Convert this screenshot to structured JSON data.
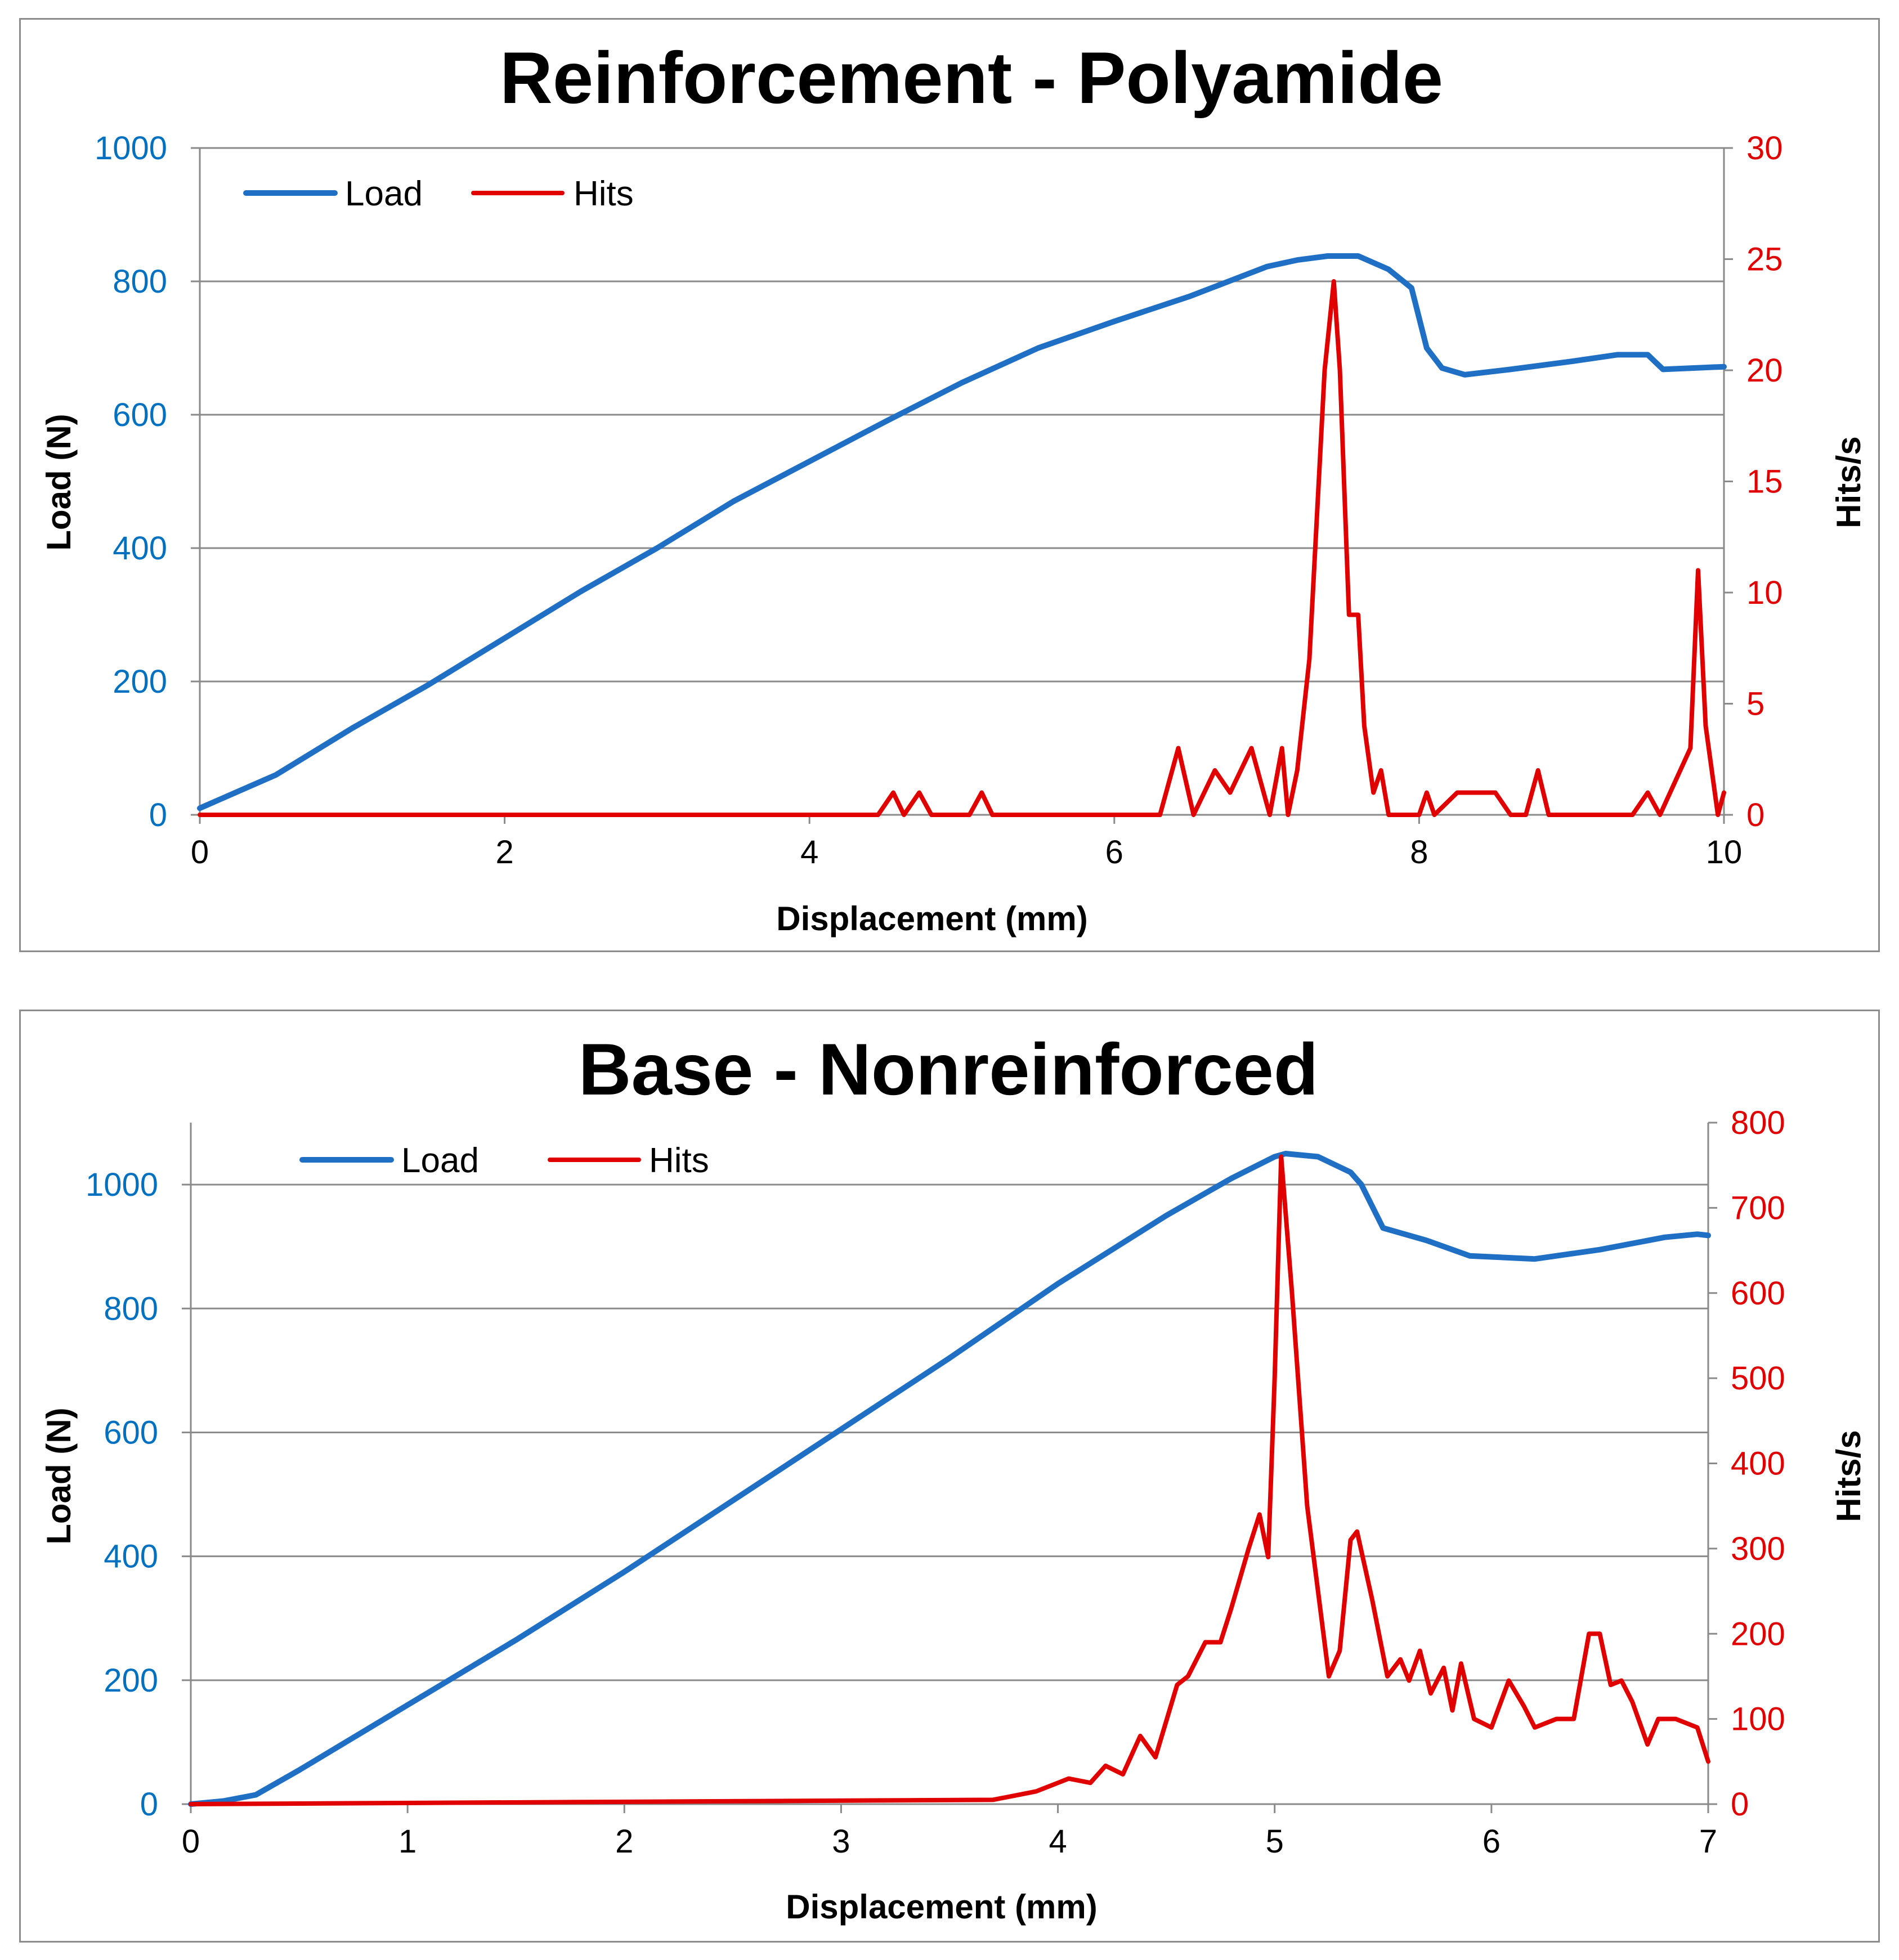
{
  "chart_data": [
    {
      "type": "line",
      "title": "Reinforcement - Polyamide",
      "xlabel": "Displacement (mm)",
      "ylabel": "Load (N)",
      "y2label": "Hits/s",
      "xlim": [
        0,
        10
      ],
      "ylim": [
        0,
        1000
      ],
      "y2lim": [
        0,
        30
      ],
      "xticks": [
        "0",
        "2",
        "4",
        "6",
        "8",
        "10"
      ],
      "yticks": [
        "0",
        "200",
        "400",
        "600",
        "800",
        "1000"
      ],
      "y2ticks": [
        "0",
        "5",
        "10",
        "15",
        "20",
        "25",
        "30"
      ],
      "grid": true,
      "legend_position": "top-left",
      "series": [
        {
          "name": "Load",
          "axis": "left",
          "color": "#1f6fc5",
          "x": [
            0,
            0.5,
            1,
            1.5,
            2,
            2.5,
            3,
            3.5,
            4,
            4.5,
            5,
            5.5,
            6,
            6.5,
            7,
            7.2,
            7.4,
            7.6,
            7.8,
            7.95,
            8.05,
            8.15,
            8.3,
            8.6,
            9,
            9.3,
            9.5,
            9.6,
            10
          ],
          "values": [
            10,
            60,
            130,
            195,
            265,
            335,
            400,
            470,
            530,
            590,
            648,
            700,
            740,
            778,
            822,
            832,
            838,
            838,
            818,
            790,
            700,
            670,
            660,
            668,
            680,
            690,
            690,
            668,
            672
          ]
        },
        {
          "name": "Hits",
          "axis": "right",
          "color": "#e00000",
          "x": [
            0,
            4.45,
            4.55,
            4.62,
            4.72,
            4.8,
            5.05,
            5.13,
            5.2,
            6.3,
            6.42,
            6.52,
            6.66,
            6.76,
            6.9,
            7.02,
            7.1,
            7.14,
            7.2,
            7.28,
            7.38,
            7.44,
            7.48,
            7.54,
            7.6,
            7.64,
            7.7,
            7.75,
            7.8,
            7.86,
            8.0,
            8.05,
            8.1,
            8.25,
            8.35,
            8.5,
            8.6,
            8.7,
            8.78,
            8.85,
            9.4,
            9.5,
            9.58,
            9.78,
            9.83,
            9.88,
            9.96,
            10
          ],
          "values": [
            0,
            0,
            1,
            0,
            1,
            0,
            0,
            1,
            0,
            0,
            3,
            0,
            2,
            1,
            3,
            0,
            3,
            0,
            2,
            7,
            20,
            24,
            20,
            9,
            9,
            4,
            1,
            2,
            0,
            0,
            0,
            1,
            0,
            1,
            1,
            1,
            0,
            0,
            2,
            0,
            0,
            1,
            0,
            3,
            11,
            4,
            0,
            1
          ]
        }
      ]
    },
    {
      "type": "line",
      "title": "Base - Nonreinforced",
      "xlabel": "Displacement (mm)",
      "ylabel": "Load (N)",
      "y2label": "Hits/s",
      "xlim": [
        0,
        7
      ],
      "ylim": [
        0,
        1100
      ],
      "y2lim": [
        0,
        800
      ],
      "xticks": [
        "0",
        "1",
        "2",
        "3",
        "4",
        "5",
        "6",
        "7"
      ],
      "yticks": [
        "0",
        "200",
        "400",
        "600",
        "800",
        "1000"
      ],
      "y2ticks": [
        "0",
        "100",
        "200",
        "300",
        "400",
        "500",
        "600",
        "700",
        "800"
      ],
      "grid": true,
      "legend_position": "top-left",
      "series": [
        {
          "name": "Load",
          "axis": "left",
          "color": "#1f6fc5",
          "x": [
            0,
            0.15,
            0.3,
            0.5,
            1,
            1.5,
            2,
            2.5,
            3,
            3.5,
            4,
            4.5,
            4.8,
            5.0,
            5.05,
            5.2,
            5.35,
            5.4,
            5.5,
            5.7,
            5.9,
            6.2,
            6.5,
            6.8,
            6.95,
            7.0
          ],
          "values": [
            0,
            5,
            15,
            55,
            160,
            265,
            375,
            490,
            605,
            720,
            840,
            950,
            1010,
            1045,
            1050,
            1045,
            1020,
            1000,
            930,
            910,
            885,
            880,
            895,
            915,
            920,
            918
          ]
        },
        {
          "name": "Hits",
          "axis": "right",
          "color": "#e00000",
          "x": [
            0,
            3.7,
            3.8,
            3.9,
            4.0,
            4.05,
            4.15,
            4.22,
            4.3,
            4.38,
            4.45,
            4.55,
            4.6,
            4.68,
            4.75,
            4.8,
            4.88,
            4.93,
            4.97,
            5.0,
            5.03,
            5.08,
            5.15,
            5.25,
            5.3,
            5.35,
            5.38,
            5.45,
            5.52,
            5.58,
            5.62,
            5.67,
            5.72,
            5.78,
            5.82,
            5.86,
            5.92,
            6.0,
            6.08,
            6.15,
            6.2,
            6.3,
            6.38,
            6.45,
            6.5,
            6.55,
            6.6,
            6.65,
            6.72,
            6.77,
            6.85,
            6.95,
            7.0
          ],
          "values": [
            0,
            5,
            10,
            15,
            25,
            30,
            25,
            45,
            35,
            80,
            55,
            140,
            150,
            190,
            190,
            230,
            300,
            340,
            290,
            500,
            760,
            600,
            350,
            150,
            180,
            310,
            320,
            240,
            150,
            170,
            145,
            180,
            130,
            160,
            110,
            165,
            100,
            90,
            145,
            115,
            90,
            100,
            100,
            200,
            200,
            140,
            145,
            120,
            70,
            100,
            100,
            90,
            50
          ]
        }
      ]
    }
  ]
}
